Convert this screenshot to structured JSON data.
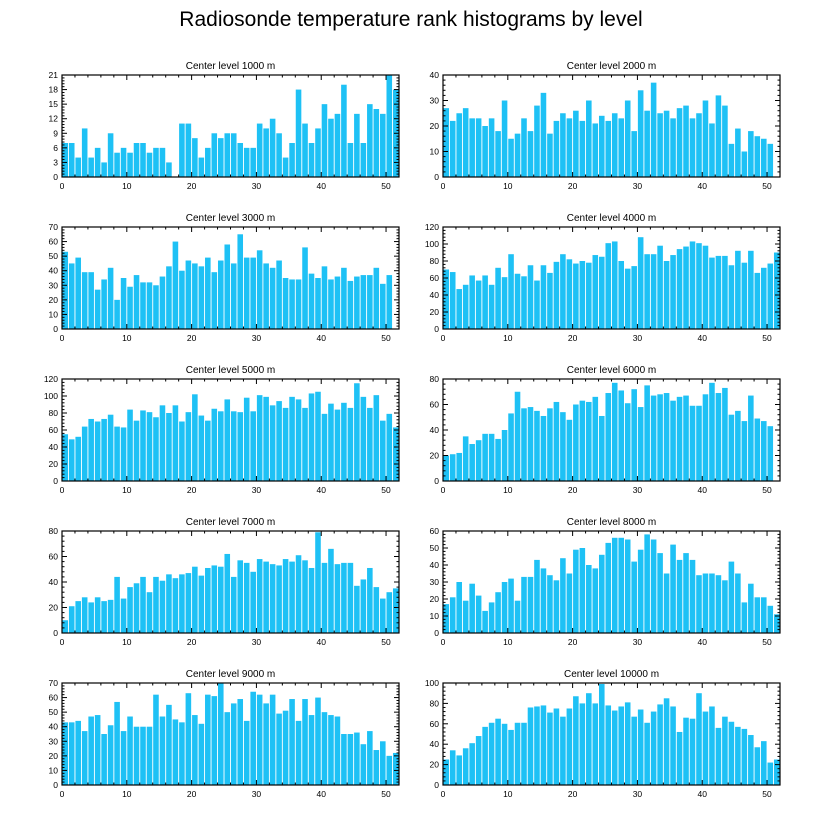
{
  "title": "Radiosonde temperature rank histograms by level",
  "colors": {
    "bar": "#1ec1f5",
    "axis": "#000000"
  },
  "chart_data": [
    {
      "type": "bar",
      "title": "Center level 1000 m",
      "x": [
        0,
        1,
        2,
        3,
        4,
        5,
        6,
        7,
        8,
        9,
        10,
        11,
        12,
        13,
        14,
        15,
        16,
        17,
        18,
        19,
        20,
        21,
        22,
        23,
        24,
        25,
        26,
        27,
        28,
        29,
        30,
        31,
        32,
        33,
        34,
        35,
        36,
        37,
        38,
        39,
        40,
        41,
        42,
        43,
        44,
        45,
        46,
        47,
        48,
        49,
        50,
        51
      ],
      "values": [
        7,
        7,
        4,
        10,
        4,
        6,
        3,
        9,
        5,
        6,
        5,
        7,
        7,
        5,
        6,
        6,
        3,
        0,
        11,
        11,
        8,
        4,
        6,
        9,
        8,
        9,
        9,
        7,
        6,
        6,
        11,
        10,
        12,
        9,
        4,
        7,
        18,
        11,
        7,
        10,
        15,
        12,
        13,
        19,
        7,
        13,
        7,
        15,
        14,
        13,
        21,
        18
      ],
      "xlim": [
        0,
        52
      ],
      "ylim": [
        0,
        21
      ],
      "yticks": [
        0,
        3,
        6,
        9,
        12,
        15,
        18,
        21
      ],
      "xticks": [
        0,
        10,
        20,
        30,
        40,
        50
      ]
    },
    {
      "type": "bar",
      "title": "Center level 2000 m",
      "x": [
        0,
        1,
        2,
        3,
        4,
        5,
        6,
        7,
        8,
        9,
        10,
        11,
        12,
        13,
        14,
        15,
        16,
        17,
        18,
        19,
        20,
        21,
        22,
        23,
        24,
        25,
        26,
        27,
        28,
        29,
        30,
        31,
        32,
        33,
        34,
        35,
        36,
        37,
        38,
        39,
        40,
        41,
        42,
        43,
        44,
        45,
        46,
        47,
        48,
        49,
        50,
        51
      ],
      "values": [
        27,
        22,
        25,
        27,
        23,
        23,
        20,
        23,
        18,
        30,
        15,
        17,
        23,
        18,
        28,
        33,
        17,
        22,
        25,
        23,
        26,
        22,
        30,
        21,
        24,
        22,
        25,
        23,
        30,
        18,
        34,
        26,
        37,
        25,
        26,
        23,
        27,
        28,
        23,
        25,
        30,
        21,
        32,
        28,
        13,
        19,
        10,
        18,
        16,
        15,
        13,
        0
      ],
      "xlim": [
        0,
        52
      ],
      "ylim": [
        0,
        40
      ],
      "yticks": [
        0,
        10,
        20,
        30,
        40
      ],
      "xticks": [
        0,
        10,
        20,
        30,
        40,
        50
      ]
    },
    {
      "type": "bar",
      "title": "Center level 3000 m",
      "x": [
        0,
        1,
        2,
        3,
        4,
        5,
        6,
        7,
        8,
        9,
        10,
        11,
        12,
        13,
        14,
        15,
        16,
        17,
        18,
        19,
        20,
        21,
        22,
        23,
        24,
        25,
        26,
        27,
        28,
        29,
        30,
        31,
        32,
        33,
        34,
        35,
        36,
        37,
        38,
        39,
        40,
        41,
        42,
        43,
        44,
        45,
        46,
        47,
        48,
        49,
        50,
        51
      ],
      "values": [
        53,
        45,
        49,
        39,
        39,
        27,
        34,
        42,
        20,
        35,
        29,
        37,
        32,
        32,
        30,
        36,
        43,
        60,
        40,
        47,
        45,
        43,
        49,
        39,
        47,
        58,
        45,
        65,
        49,
        49,
        54,
        45,
        42,
        47,
        35,
        34,
        34,
        56,
        38,
        35,
        43,
        34,
        36,
        42,
        33,
        36,
        37,
        37,
        42,
        31,
        37,
        0
      ],
      "xlim": [
        0,
        52
      ],
      "ylim": [
        0,
        70
      ],
      "yticks": [
        0,
        10,
        20,
        30,
        40,
        50,
        60,
        70
      ],
      "xticks": [
        0,
        10,
        20,
        30,
        40,
        50
      ]
    },
    {
      "type": "bar",
      "title": "Center level 4000 m",
      "x": [
        0,
        1,
        2,
        3,
        4,
        5,
        6,
        7,
        8,
        9,
        10,
        11,
        12,
        13,
        14,
        15,
        16,
        17,
        18,
        19,
        20,
        21,
        22,
        23,
        24,
        25,
        26,
        27,
        28,
        29,
        30,
        31,
        32,
        33,
        34,
        35,
        36,
        37,
        38,
        39,
        40,
        41,
        42,
        43,
        44,
        45,
        46,
        47,
        48,
        49,
        50,
        51
      ],
      "values": [
        70,
        67,
        47,
        52,
        63,
        57,
        63,
        52,
        72,
        61,
        88,
        65,
        62,
        75,
        57,
        75,
        66,
        79,
        88,
        82,
        77,
        80,
        78,
        87,
        85,
        101,
        103,
        80,
        71,
        74,
        108,
        88,
        88,
        98,
        80,
        87,
        94,
        97,
        103,
        101,
        98,
        84,
        86,
        86,
        75,
        92,
        78,
        92,
        66,
        72,
        77,
        90
      ],
      "xlim": [
        0,
        52
      ],
      "ylim": [
        0,
        120
      ],
      "yticks": [
        0,
        20,
        40,
        60,
        80,
        100,
        120
      ],
      "xticks": [
        0,
        10,
        20,
        30,
        40,
        50
      ]
    },
    {
      "type": "bar",
      "title": "Center level 5000 m",
      "x": [
        0,
        1,
        2,
        3,
        4,
        5,
        6,
        7,
        8,
        9,
        10,
        11,
        12,
        13,
        14,
        15,
        16,
        17,
        18,
        19,
        20,
        21,
        22,
        23,
        24,
        25,
        26,
        27,
        28,
        29,
        30,
        31,
        32,
        33,
        34,
        35,
        36,
        37,
        38,
        39,
        40,
        41,
        42,
        43,
        44,
        45,
        46,
        47,
        48,
        49,
        50,
        51
      ],
      "values": [
        55,
        49,
        52,
        64,
        73,
        70,
        73,
        78,
        64,
        63,
        84,
        71,
        83,
        81,
        75,
        89,
        80,
        89,
        70,
        81,
        102,
        77,
        71,
        85,
        82,
        96,
        82,
        81,
        98,
        82,
        101,
        99,
        89,
        94,
        86,
        99,
        96,
        86,
        103,
        105,
        79,
        91,
        84,
        92,
        86,
        115,
        99,
        86,
        101,
        71,
        79,
        63
      ],
      "xlim": [
        0,
        52
      ],
      "ylim": [
        0,
        120
      ],
      "yticks": [
        0,
        20,
        40,
        60,
        80,
        100,
        120
      ],
      "xticks": [
        0,
        10,
        20,
        30,
        40,
        50
      ]
    },
    {
      "type": "bar",
      "title": "Center level 6000 m",
      "x": [
        0,
        1,
        2,
        3,
        4,
        5,
        6,
        7,
        8,
        9,
        10,
        11,
        12,
        13,
        14,
        15,
        16,
        17,
        18,
        19,
        20,
        21,
        22,
        23,
        24,
        25,
        26,
        27,
        28,
        29,
        30,
        31,
        32,
        33,
        34,
        35,
        36,
        37,
        38,
        39,
        40,
        41,
        42,
        43,
        44,
        45,
        46,
        47,
        48,
        49,
        50,
        51
      ],
      "values": [
        20,
        21,
        22,
        35,
        29,
        32,
        37,
        37,
        33,
        40,
        53,
        70,
        57,
        58,
        55,
        51,
        57,
        62,
        54,
        48,
        60,
        63,
        62,
        66,
        51,
        69,
        77,
        71,
        61,
        72,
        58,
        75,
        67,
        68,
        69,
        63,
        66,
        67,
        59,
        59,
        68,
        77,
        69,
        73,
        52,
        55,
        47,
        67,
        49,
        47,
        43,
        0
      ],
      "xlim": [
        0,
        52
      ],
      "ylim": [
        0,
        80
      ],
      "yticks": [
        0,
        20,
        40,
        60,
        80
      ],
      "xticks": [
        0,
        10,
        20,
        30,
        40,
        50
      ]
    },
    {
      "type": "bar",
      "title": "Center level 7000 m",
      "x": [
        0,
        1,
        2,
        3,
        4,
        5,
        6,
        7,
        8,
        9,
        10,
        11,
        12,
        13,
        14,
        15,
        16,
        17,
        18,
        19,
        20,
        21,
        22,
        23,
        24,
        25,
        26,
        27,
        28,
        29,
        30,
        31,
        32,
        33,
        34,
        35,
        36,
        37,
        38,
        39,
        40,
        41,
        42,
        43,
        44,
        45,
        46,
        47,
        48,
        49,
        50,
        51
      ],
      "values": [
        10,
        21,
        25,
        28,
        24,
        28,
        25,
        26,
        44,
        27,
        36,
        39,
        44,
        32,
        44,
        41,
        46,
        43,
        46,
        47,
        52,
        45,
        51,
        53,
        52,
        62,
        44,
        57,
        55,
        48,
        58,
        56,
        54,
        53,
        58,
        56,
        61,
        57,
        51,
        79,
        55,
        66,
        54,
        55,
        55,
        37,
        42,
        51,
        36,
        27,
        32,
        35
      ],
      "xlim": [
        0,
        52
      ],
      "ylim": [
        0,
        80
      ],
      "yticks": [
        0,
        20,
        40,
        60,
        80
      ],
      "xticks": [
        0,
        10,
        20,
        30,
        40,
        50
      ]
    },
    {
      "type": "bar",
      "title": "Center level 8000 m",
      "x": [
        0,
        1,
        2,
        3,
        4,
        5,
        6,
        7,
        8,
        9,
        10,
        11,
        12,
        13,
        14,
        15,
        16,
        17,
        18,
        19,
        20,
        21,
        22,
        23,
        24,
        25,
        26,
        27,
        28,
        29,
        30,
        31,
        32,
        33,
        34,
        35,
        36,
        37,
        38,
        39,
        40,
        41,
        42,
        43,
        44,
        45,
        46,
        47,
        48,
        49,
        50,
        51
      ],
      "values": [
        17,
        21,
        30,
        19,
        29,
        22,
        13,
        18,
        24,
        30,
        32,
        19,
        33,
        33,
        43,
        38,
        34,
        31,
        44,
        35,
        49,
        50,
        40,
        38,
        46,
        53,
        56,
        56,
        55,
        42,
        49,
        58,
        55,
        47,
        35,
        52,
        43,
        47,
        43,
        34,
        35,
        35,
        34,
        31,
        42,
        35,
        18,
        29,
        21,
        21,
        16,
        11
      ],
      "xlim": [
        0,
        52
      ],
      "ylim": [
        0,
        60
      ],
      "yticks": [
        0,
        10,
        20,
        30,
        40,
        50,
        60
      ],
      "xticks": [
        0,
        10,
        20,
        30,
        40,
        50
      ]
    },
    {
      "type": "bar",
      "title": "Center level 9000 m",
      "x": [
        0,
        1,
        2,
        3,
        4,
        5,
        6,
        7,
        8,
        9,
        10,
        11,
        12,
        13,
        14,
        15,
        16,
        17,
        18,
        19,
        20,
        21,
        22,
        23,
        24,
        25,
        26,
        27,
        28,
        29,
        30,
        31,
        32,
        33,
        34,
        35,
        36,
        37,
        38,
        39,
        40,
        41,
        42,
        43,
        44,
        45,
        46,
        47,
        48,
        49,
        50,
        51
      ],
      "values": [
        43,
        43,
        44,
        37,
        47,
        48,
        35,
        41,
        57,
        37,
        47,
        40,
        40,
        40,
        62,
        47,
        55,
        45,
        43,
        63,
        48,
        42,
        62,
        61,
        70,
        50,
        56,
        59,
        44,
        64,
        62,
        56,
        62,
        49,
        51,
        59,
        44,
        59,
        48,
        60,
        50,
        48,
        47,
        35,
        35,
        36,
        28,
        37,
        24,
        30,
        20,
        22
      ],
      "xlim": [
        0,
        52
      ],
      "ylim": [
        0,
        70
      ],
      "yticks": [
        0,
        10,
        20,
        30,
        40,
        50,
        60,
        70
      ],
      "xticks": [
        0,
        10,
        20,
        30,
        40,
        50
      ]
    },
    {
      "type": "bar",
      "title": "Center level 10000 m",
      "x": [
        0,
        1,
        2,
        3,
        4,
        5,
        6,
        7,
        8,
        9,
        10,
        11,
        12,
        13,
        14,
        15,
        16,
        17,
        18,
        19,
        20,
        21,
        22,
        23,
        24,
        25,
        26,
        27,
        28,
        29,
        30,
        31,
        32,
        33,
        34,
        35,
        36,
        37,
        38,
        39,
        40,
        41,
        42,
        43,
        44,
        45,
        46,
        47,
        48,
        49,
        50,
        51
      ],
      "values": [
        25,
        34,
        29,
        36,
        41,
        48,
        57,
        61,
        65,
        60,
        54,
        61,
        61,
        76,
        77,
        78,
        71,
        75,
        67,
        75,
        87,
        80,
        90,
        80,
        99,
        78,
        73,
        77,
        81,
        67,
        74,
        61,
        72,
        79,
        85,
        77,
        52,
        66,
        65,
        90,
        72,
        77,
        56,
        67,
        62,
        57,
        55,
        49,
        37,
        43,
        22,
        25
      ],
      "xlim": [
        0,
        52
      ],
      "ylim": [
        0,
        100
      ],
      "yticks": [
        0,
        20,
        40,
        60,
        80,
        100
      ],
      "xticks": [
        0,
        10,
        20,
        30,
        40,
        50
      ]
    }
  ]
}
